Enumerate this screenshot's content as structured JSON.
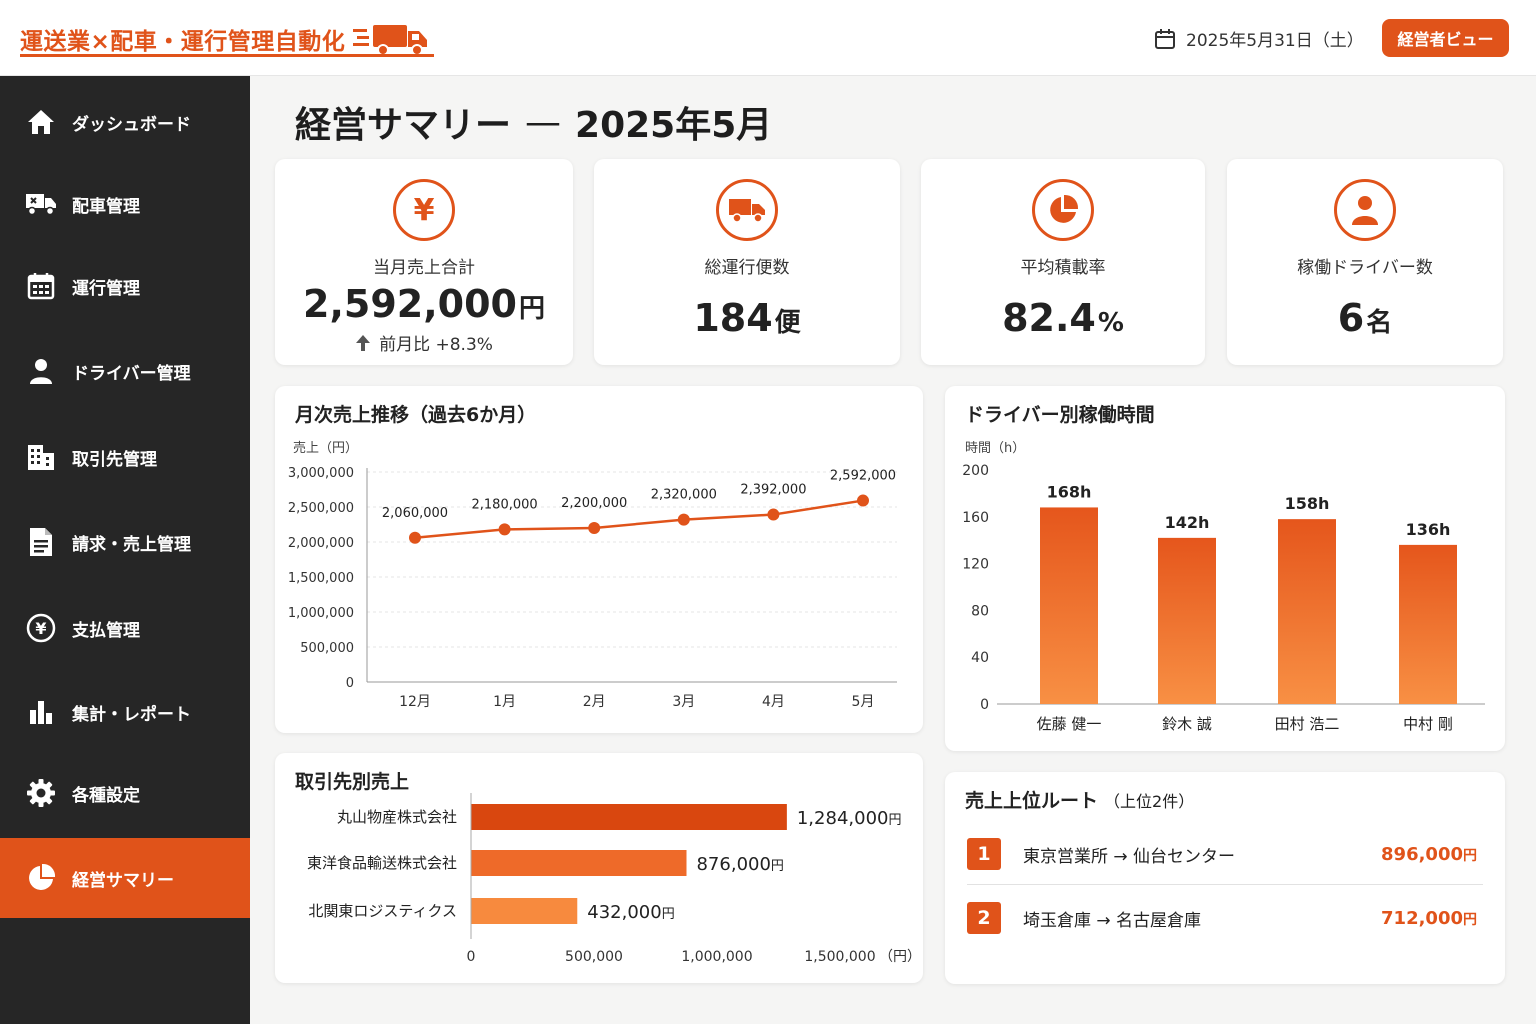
{
  "header": {
    "logo_text": "運送業×配車・運行管理自動化",
    "date": "2025年5月31日（土）",
    "view_button": "経営者ビュー"
  },
  "sidebar": {
    "items": [
      {
        "label": "ダッシュボード",
        "icon": "home-icon"
      },
      {
        "label": "配車管理",
        "icon": "dispatch-truck-icon"
      },
      {
        "label": "運行管理",
        "icon": "calendar-icon"
      },
      {
        "label": "ドライバー管理",
        "icon": "person-icon"
      },
      {
        "label": "取引先管理",
        "icon": "building-icon"
      },
      {
        "label": "請求・売上管理",
        "icon": "document-icon"
      },
      {
        "label": "支払管理",
        "icon": "yen-icon"
      },
      {
        "label": "集計・レポート",
        "icon": "bar-chart-icon"
      },
      {
        "label": "各種設定",
        "icon": "gear-icon"
      },
      {
        "label": "経営サマリー",
        "icon": "pie-chart-icon",
        "active": true
      }
    ]
  },
  "page": {
    "title": "経営サマリー",
    "dash": "—",
    "period": "2025年5月"
  },
  "kpis": {
    "sales": {
      "label": "当月売上合計",
      "value": "2,592,000",
      "unit": "円",
      "change": "前月比 +8.3%"
    },
    "trips": {
      "label": "総運行便数",
      "value": "184",
      "unit": "便"
    },
    "load": {
      "label": "平均積載率",
      "value": "82.4",
      "unit": "%"
    },
    "drivers": {
      "label": "稼働ドライバー数",
      "value": "6",
      "unit": "名"
    }
  },
  "colors": {
    "accent": "#e0531a",
    "accent_light": "#f68a3f",
    "sidebar": "#262626"
  },
  "chart_data": [
    {
      "type": "line",
      "title": "月次売上推移（過去6か月）",
      "ylabel": "売上（円）",
      "categories": [
        "12月",
        "1月",
        "2月",
        "3月",
        "4月",
        "5月"
      ],
      "values": [
        2060000,
        2180000,
        2200000,
        2320000,
        2392000,
        2592000
      ],
      "value_labels": [
        "2,060,000",
        "2,180,000",
        "2,200,000",
        "2,320,000",
        "2,392,000",
        "2,592,000"
      ],
      "yticks": [
        "0",
        "500,000",
        "1,000,000",
        "1,500,000",
        "2,000,000",
        "2,500,000",
        "3,000,000"
      ],
      "ylim": [
        0,
        3000000
      ],
      "grid": true
    },
    {
      "type": "bar",
      "title": "ドライバー別稼働時間",
      "ylabel": "時間（h）",
      "categories": [
        "佐藤 健一",
        "鈴木 誠",
        "田村 浩二",
        "中村 剛"
      ],
      "values": [
        168,
        142,
        158,
        136
      ],
      "value_labels": [
        "168h",
        "142h",
        "158h",
        "136h"
      ],
      "yticks": [
        "0",
        "40",
        "80",
        "120",
        "160",
        "200"
      ],
      "ylim": [
        0,
        200
      ]
    },
    {
      "type": "bar",
      "orientation": "horizontal",
      "title": "取引先別売上",
      "categories": [
        "丸山物産株式会社",
        "東洋食品輸送株式会社",
        "北関東ロジスティクス"
      ],
      "values": [
        1284000,
        876000,
        432000
      ],
      "value_labels": [
        "1,284,000",
        "876,000",
        "432,000"
      ],
      "value_unit": "円",
      "xticks": [
        "0",
        "500,000",
        "1,000,000",
        "1,500,000"
      ],
      "xunit": "（円）",
      "xlim": [
        0,
        1500000
      ]
    }
  ],
  "routes": {
    "title": "売上上位ルート",
    "subtitle": "（上位2件）",
    "items": [
      {
        "rank": "1",
        "name": "東京営業所 → 仙台センター",
        "amount": "896,000",
        "unit": "円"
      },
      {
        "rank": "2",
        "name": "埼玉倉庫 → 名古屋倉庫",
        "amount": "712,000",
        "unit": "円"
      }
    ]
  }
}
